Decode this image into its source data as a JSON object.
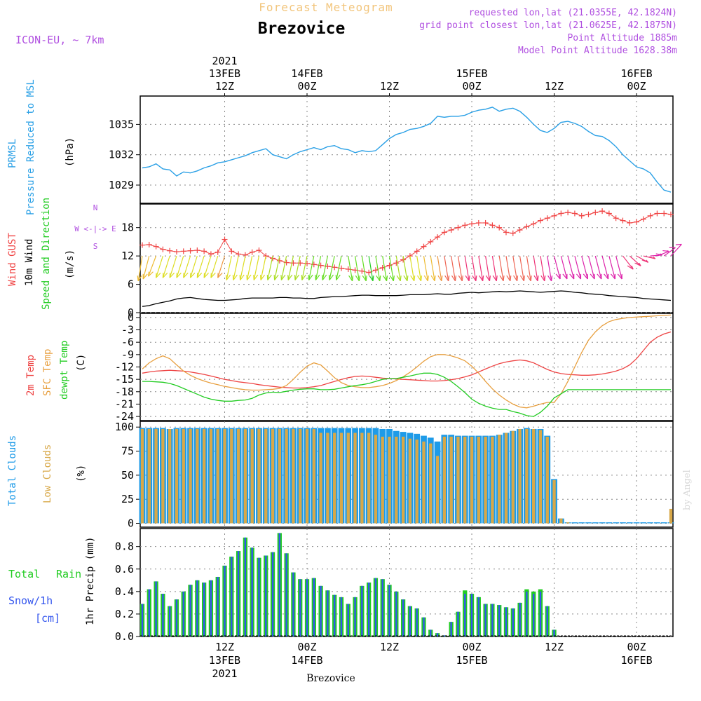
{
  "header": {
    "forecast_title": "Forecast Meteogram",
    "station": "Brezovice",
    "model": "ICON-EU, ~ 7km",
    "requested": "requested lon,lat (21.0355E, 42.1824N)",
    "grid_point": "grid point closest lon,lat (21.0625E, 42.1875N)",
    "point_altitude": "Point Altitude 1885m",
    "model_altitude": "Model Point Altitude 1628.38m",
    "footer_station": "Brezovice",
    "watermark": "by Angel"
  },
  "colors": {
    "forecast_title": "#f2c57c",
    "meta": "#b050e0",
    "pressure": "#2aa0e6",
    "gust": "#f04545",
    "wind": "#000000",
    "dir": "#22cc22",
    "temp2m": "#ee4444",
    "sfc": "#e8a040",
    "dewpt": "#22cc22",
    "cloud_total": "#1e9be8",
    "cloud_low": "#d8a848",
    "rain": "#22cc22",
    "snow": "#3355ee"
  },
  "time_axis": {
    "top": [
      {
        "t": 12,
        "lines": [
          "2021",
          "13FEB",
          "12Z"
        ]
      },
      {
        "t": 24,
        "lines": [
          "14FEB",
          "00Z"
        ]
      },
      {
        "t": 36,
        "lines": [
          "12Z"
        ]
      },
      {
        "t": 48,
        "lines": [
          "15FEB",
          "00Z"
        ]
      },
      {
        "t": 60,
        "lines": [
          "12Z"
        ]
      },
      {
        "t": 72,
        "lines": [
          "16FEB",
          "00Z"
        ]
      }
    ],
    "bottom": [
      {
        "t": 12,
        "lines": [
          "12Z",
          "13FEB",
          "2021"
        ]
      },
      {
        "t": 24,
        "lines": [
          "00Z",
          "14FEB"
        ]
      },
      {
        "t": 36,
        "lines": [
          "12Z"
        ]
      },
      {
        "t": 48,
        "lines": [
          "00Z",
          "15FEB"
        ]
      },
      {
        "t": 60,
        "lines": [
          "12Z"
        ]
      },
      {
        "t": 72,
        "lines": [
          "00Z",
          "16FEB"
        ]
      }
    ]
  },
  "labels": {
    "pressure": [
      "PRMSL",
      "Pressure Reduced to MSL",
      "(hPa)"
    ],
    "wind": [
      "Wind GUST",
      "10m Wind",
      "Speed and Direction",
      "(m/s)"
    ],
    "compass": [
      "N",
      "W <-|-> E",
      "S"
    ],
    "temp": [
      "2m Temp",
      "SFC Temp",
      "dewpt Temp",
      "(C)"
    ],
    "clouds": [
      "Total Clouds",
      "Low Clouds",
      "(%)"
    ],
    "precip_left": [
      "Total",
      "Rain",
      "Snow/1h",
      "[cm]"
    ],
    "precip_axis": "1hr Precip (mm)"
  },
  "chart_data": [
    {
      "type": "line",
      "title": "PRMSL Pressure Reduced to MSL",
      "ylabel": "(hPa)",
      "ylim": [
        1027.2,
        1037.8
      ],
      "yticks": [
        1029,
        1032,
        1035
      ],
      "x_hours": "0..77 hourly from 13FEB 00Z",
      "series": [
        {
          "name": "PRMSL",
          "values": [
            1030.7,
            1030.8,
            1031.1,
            1030.6,
            1030.5,
            1029.9,
            1030.3,
            1030.2,
            1030.4,
            1030.7,
            1030.9,
            1031.2,
            1031.3,
            1031.5,
            1031.7,
            1031.9,
            1032.2,
            1032.4,
            1032.6,
            1032.0,
            1031.8,
            1031.6,
            1032.0,
            1032.3,
            1032.5,
            1032.7,
            1032.5,
            1032.8,
            1032.9,
            1032.6,
            1032.5,
            1032.2,
            1032.4,
            1032.3,
            1032.4,
            1033.0,
            1033.6,
            1034.0,
            1034.2,
            1034.5,
            1034.6,
            1034.8,
            1035.1,
            1035.8,
            1035.7,
            1035.8,
            1035.8,
            1035.9,
            1036.2,
            1036.4,
            1036.5,
            1036.7,
            1036.3,
            1036.5,
            1036.6,
            1036.3,
            1035.7,
            1035.0,
            1034.4,
            1034.2,
            1034.6,
            1035.2,
            1035.3,
            1035.1,
            1034.8,
            1034.3,
            1033.9,
            1033.8,
            1033.4,
            1032.8,
            1032.0,
            1031.4,
            1030.8,
            1030.6,
            1030.2,
            1029.3,
            1028.5,
            1028.3
          ]
        }
      ]
    },
    {
      "type": "line",
      "title": "Wind GUST / 10m Wind Speed and Direction",
      "ylabel": "(m/s)",
      "ylim": [
        0,
        23
      ],
      "yticks": [
        0,
        6,
        12,
        18
      ],
      "series": [
        {
          "name": "Wind GUST",
          "values": [
            14.3,
            14.4,
            14.0,
            13.4,
            13.1,
            12.9,
            13.0,
            13.1,
            13.2,
            13.0,
            12.4,
            12.8,
            15.5,
            13.0,
            12.4,
            12.2,
            12.8,
            13.2,
            12.0,
            11.5,
            11.0,
            10.6,
            10.5,
            10.5,
            10.4,
            10.2,
            10.0,
            9.8,
            9.6,
            9.4,
            9.2,
            9.0,
            8.8,
            8.5,
            9.0,
            9.5,
            10.0,
            10.5,
            11.2,
            12.0,
            13.0,
            14.0,
            15.0,
            16.0,
            17.0,
            17.5,
            18.0,
            18.5,
            18.8,
            19.0,
            19.0,
            18.5,
            18.0,
            17.0,
            16.8,
            17.5,
            18.2,
            18.8,
            19.5,
            20.0,
            20.5,
            21.0,
            21.2,
            21.0,
            20.5,
            20.8,
            21.2,
            21.5,
            21.0,
            20.0,
            19.5,
            19.0,
            19.2,
            19.8,
            20.5,
            21.0,
            21.0,
            20.8
          ]
        },
        {
          "name": "10m Wind",
          "values": [
            1.3,
            1.5,
            1.9,
            2.2,
            2.5,
            2.9,
            3.1,
            3.2,
            3.0,
            2.8,
            2.7,
            2.6,
            2.6,
            2.7,
            2.8,
            3.0,
            3.1,
            3.1,
            3.1,
            3.1,
            3.2,
            3.2,
            3.1,
            3.1,
            3.0,
            3.0,
            3.2,
            3.3,
            3.4,
            3.4,
            3.5,
            3.6,
            3.7,
            3.7,
            3.6,
            3.6,
            3.6,
            3.6,
            3.7,
            3.8,
            3.8,
            3.8,
            3.9,
            4.0,
            3.9,
            3.9,
            4.1,
            4.2,
            4.3,
            4.2,
            4.3,
            4.4,
            4.5,
            4.4,
            4.5,
            4.6,
            4.5,
            4.4,
            4.3,
            4.4,
            4.5,
            4.6,
            4.5,
            4.3,
            4.2,
            4.0,
            3.9,
            3.8,
            3.6,
            3.5,
            3.4,
            3.3,
            3.2,
            3.0,
            2.9,
            2.8,
            2.7,
            2.6
          ]
        }
      ]
    },
    {
      "type": "line",
      "title": "2m Temp / SFC Temp / dewpt Temp",
      "ylabel": "(C)",
      "ylim": [
        -25,
        1
      ],
      "yticks": [
        0,
        -3,
        -6,
        -9,
        -12,
        -15,
        -18,
        -21,
        -24
      ],
      "series": [
        {
          "name": "2m Temp",
          "values": [
            -13.5,
            -13.2,
            -13.0,
            -12.9,
            -12.8,
            -12.9,
            -13.0,
            -13.2,
            -13.5,
            -13.8,
            -14.2,
            -14.6,
            -15.0,
            -15.3,
            -15.6,
            -15.8,
            -16.0,
            -16.3,
            -16.5,
            -16.7,
            -16.9,
            -17.0,
            -17.1,
            -17.1,
            -17.0,
            -16.8,
            -16.5,
            -16.0,
            -15.5,
            -15.0,
            -14.6,
            -14.3,
            -14.2,
            -14.3,
            -14.5,
            -14.7,
            -14.8,
            -14.9,
            -15.0,
            -15.1,
            -15.2,
            -15.3,
            -15.4,
            -15.4,
            -15.3,
            -15.1,
            -14.8,
            -14.4,
            -13.9,
            -13.2,
            -12.5,
            -11.8,
            -11.2,
            -10.8,
            -10.5,
            -10.3,
            -10.5,
            -11.0,
            -11.8,
            -12.6,
            -13.2,
            -13.6,
            -13.8,
            -13.9,
            -14.0,
            -14.0,
            -13.9,
            -13.7,
            -13.4,
            -13.0,
            -12.4,
            -11.5,
            -10.0,
            -8.0,
            -6.0,
            -4.8,
            -4.0,
            -3.5
          ]
        },
        {
          "name": "SFC Temp",
          "values": [
            -12.5,
            -11.0,
            -10.0,
            -9.3,
            -10.0,
            -11.5,
            -13.0,
            -14.0,
            -14.8,
            -15.4,
            -15.9,
            -16.3,
            -16.7,
            -17.0,
            -17.3,
            -17.5,
            -17.6,
            -17.6,
            -17.5,
            -17.4,
            -17.2,
            -16.5,
            -15.0,
            -13.3,
            -11.8,
            -11.0,
            -11.5,
            -13.0,
            -14.6,
            -15.8,
            -16.5,
            -16.8,
            -17.0,
            -17.0,
            -16.8,
            -16.5,
            -16.0,
            -15.3,
            -14.4,
            -13.3,
            -12.0,
            -10.6,
            -9.5,
            -9.0,
            -9.0,
            -9.3,
            -9.8,
            -10.5,
            -11.8,
            -13.5,
            -15.5,
            -17.3,
            -18.8,
            -20.0,
            -21.0,
            -21.7,
            -21.9,
            -21.5,
            -21.0,
            -20.6,
            -20.6,
            -18.5,
            -15.5,
            -12.0,
            -8.5,
            -5.5,
            -3.5,
            -2.0,
            -1.0,
            -0.5,
            -0.2,
            0.0,
            0.1,
            0.2,
            0.3,
            0.4,
            0.5,
            0.6
          ]
        },
        {
          "name": "dewpt Temp",
          "values": [
            -15.5,
            -15.5,
            -15.6,
            -15.7,
            -16.0,
            -16.5,
            -17.2,
            -17.9,
            -18.6,
            -19.3,
            -19.8,
            -20.1,
            -20.3,
            -20.3,
            -20.1,
            -20.0,
            -19.6,
            -18.8,
            -18.3,
            -18.1,
            -18.2,
            -17.9,
            -17.6,
            -17.4,
            -17.3,
            -17.3,
            -17.5,
            -17.5,
            -17.4,
            -17.1,
            -16.8,
            -16.5,
            -16.3,
            -16.0,
            -15.5,
            -15.0,
            -14.8,
            -14.8,
            -14.5,
            -14.2,
            -13.8,
            -13.5,
            -13.5,
            -13.8,
            -14.5,
            -15.5,
            -16.8,
            -18.2,
            -19.8,
            -20.8,
            -21.5,
            -22.0,
            -22.3,
            -22.3,
            -22.8,
            -23.2,
            -23.8,
            -24.0,
            -23.0,
            -21.5,
            -19.5,
            -18.5,
            -17.5,
            -17.5,
            -17.5,
            -17.5,
            -17.5,
            -17.5,
            -17.5,
            -17.5,
            -17.5,
            -17.5,
            -17.5,
            -17.5,
            -17.5,
            -17.5,
            -17.5,
            -17.5
          ]
        }
      ]
    },
    {
      "type": "bar",
      "title": "Total Clouds / Low Clouds",
      "ylabel": "(%)",
      "ylim": [
        -4,
        106
      ],
      "yticks": [
        0,
        25,
        50,
        75,
        100
      ],
      "series": [
        {
          "name": "Total Clouds",
          "values": [
            99,
            99,
            99,
            99,
            98,
            99,
            99,
            99,
            99,
            99,
            99,
            99,
            99,
            99,
            99,
            99,
            99,
            99,
            99,
            99,
            99,
            99,
            99,
            99,
            99,
            99,
            99,
            99,
            99,
            99,
            99,
            99,
            99,
            99,
            99,
            98,
            98,
            96,
            95,
            94,
            93,
            91,
            89,
            85,
            92,
            92,
            91,
            91,
            91,
            91,
            91,
            91,
            92,
            94,
            96,
            98,
            99,
            98,
            98,
            91,
            46,
            5,
            1,
            1,
            1,
            1,
            1,
            1,
            1,
            1,
            1,
            1,
            1,
            1,
            1,
            1,
            1,
            1
          ]
        },
        {
          "name": "Low Clouds",
          "values": [
            98,
            98,
            98,
            98,
            98,
            98,
            98,
            98,
            98,
            98,
            98,
            98,
            98,
            98,
            98,
            98,
            98,
            98,
            98,
            98,
            98,
            98,
            98,
            98,
            98,
            98,
            94,
            94,
            94,
            94,
            94,
            94,
            94,
            94,
            92,
            90,
            90,
            90,
            90,
            88,
            87,
            85,
            83,
            70,
            90,
            90,
            90,
            90,
            90,
            90,
            90,
            90,
            92,
            94,
            96,
            98,
            98,
            98,
            97,
            90,
            45,
            5,
            1,
            0,
            0,
            0,
            0,
            0,
            0,
            0,
            0,
            0,
            0,
            0,
            0,
            0,
            0,
            15
          ]
        }
      ]
    },
    {
      "type": "bar",
      "title": "1hr Precip (mm)",
      "ylabel": "1hr Precip (mm)",
      "ylim": [
        0,
        0.96
      ],
      "yticks": [
        0,
        0.2,
        0.4,
        0.6,
        0.8
      ],
      "series": [
        {
          "name": "Total",
          "values": [
            0.29,
            0.42,
            0.49,
            0.38,
            0.27,
            0.33,
            0.4,
            0.46,
            0.5,
            0.48,
            0.5,
            0.53,
            0.63,
            0.71,
            0.76,
            0.88,
            0.79,
            0.7,
            0.72,
            0.75,
            0.92,
            0.74,
            0.57,
            0.51,
            0.51,
            0.52,
            0.45,
            0.41,
            0.37,
            0.35,
            0.29,
            0.35,
            0.45,
            0.48,
            0.52,
            0.51,
            0.46,
            0.4,
            0.33,
            0.27,
            0.25,
            0.17,
            0.06,
            0.03,
            0.01,
            0.13,
            0.22,
            0.41,
            0.38,
            0.35,
            0.29,
            0.29,
            0.28,
            0.26,
            0.25,
            0.3,
            0.42,
            0.4,
            0.42,
            0.27,
            0.06,
            0,
            0,
            0,
            0,
            0,
            0,
            0,
            0,
            0,
            0,
            0,
            0,
            0,
            0,
            0,
            0,
            0
          ]
        },
        {
          "name": "Snow/1h",
          "values": [
            0.29,
            0.42,
            0.49,
            0.38,
            0.27,
            0.33,
            0.4,
            0.46,
            0.5,
            0.48,
            0.5,
            0.53,
            0.63,
            0.71,
            0.76,
            0.88,
            0.79,
            0.7,
            0.72,
            0.75,
            0.92,
            0.74,
            0.57,
            0.51,
            0.51,
            0.52,
            0.45,
            0.41,
            0.37,
            0.35,
            0.29,
            0.35,
            0.45,
            0.48,
            0.52,
            0.51,
            0.46,
            0.4,
            0.33,
            0.27,
            0.25,
            0.17,
            0.06,
            0.03,
            0.01,
            0.13,
            0.22,
            0.38,
            0.38,
            0.35,
            0.29,
            0.29,
            0.28,
            0.26,
            0.25,
            0.3,
            0.4,
            0.38,
            0.4,
            0.27,
            0.06,
            0,
            0,
            0,
            0,
            0,
            0,
            0,
            0,
            0,
            0,
            0,
            0,
            0,
            0,
            0,
            0,
            0
          ]
        }
      ]
    }
  ]
}
